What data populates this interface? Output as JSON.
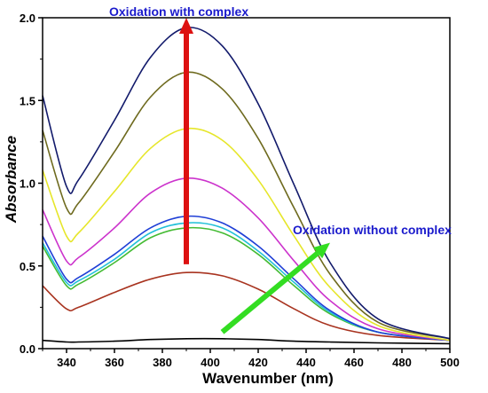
{
  "chart_data": {
    "type": "line",
    "title": "",
    "xlabel": "Wavenumber (nm)",
    "ylabel": "Absorbance",
    "xlim": [
      330,
      500
    ],
    "ylim": [
      0,
      2.0
    ],
    "x_ticks": [
      "340",
      "360",
      "380",
      "400",
      "420",
      "440",
      "460",
      "480",
      "500"
    ],
    "y_ticks": [
      "0.0",
      "0.5",
      "1.0",
      "1.5",
      "2.0"
    ],
    "grid": false,
    "x": [
      330,
      340,
      345,
      360,
      375,
      390,
      405,
      420,
      435,
      450,
      470,
      500
    ],
    "series": [
      {
        "color": "#000000",
        "values": [
          0.05,
          0.04,
          0.04,
          0.045,
          0.055,
          0.06,
          0.06,
          0.055,
          0.045,
          0.04,
          0.035,
          0.03
        ]
      },
      {
        "color": "#a8331f",
        "values": [
          0.38,
          0.24,
          0.25,
          0.34,
          0.42,
          0.46,
          0.44,
          0.36,
          0.24,
          0.14,
          0.08,
          0.05
        ]
      },
      {
        "color": "#44bb33",
        "values": [
          0.62,
          0.38,
          0.39,
          0.52,
          0.67,
          0.73,
          0.7,
          0.57,
          0.38,
          0.21,
          0.1,
          0.05
        ]
      },
      {
        "color": "#22c0d8",
        "values": [
          0.64,
          0.4,
          0.41,
          0.54,
          0.7,
          0.76,
          0.73,
          0.59,
          0.4,
          0.22,
          0.1,
          0.05
        ]
      },
      {
        "color": "#1f3fd6",
        "values": [
          0.68,
          0.42,
          0.43,
          0.57,
          0.73,
          0.8,
          0.76,
          0.62,
          0.42,
          0.23,
          0.1,
          0.05
        ]
      },
      {
        "color": "#cc33cc",
        "values": [
          0.84,
          0.53,
          0.55,
          0.73,
          0.94,
          1.03,
          0.97,
          0.79,
          0.53,
          0.29,
          0.12,
          0.05
        ]
      },
      {
        "color": "#e6e62a",
        "values": [
          1.08,
          0.68,
          0.7,
          0.95,
          1.21,
          1.33,
          1.26,
          1.02,
          0.68,
          0.37,
          0.14,
          0.05
        ]
      },
      {
        "color": "#6e6a1e",
        "values": [
          1.32,
          0.85,
          0.88,
          1.19,
          1.52,
          1.67,
          1.57,
          1.27,
          0.85,
          0.45,
          0.16,
          0.06
        ]
      },
      {
        "color": "#121a6b",
        "values": [
          1.53,
          0.98,
          1.02,
          1.38,
          1.76,
          1.94,
          1.83,
          1.48,
          0.99,
          0.52,
          0.18,
          0.06
        ]
      }
    ],
    "annotations": [
      {
        "text": "Oxidation with complex",
        "color": "#1a1acc"
      },
      {
        "text": "Oxidation without complex",
        "color": "#1a1acc"
      }
    ],
    "arrows": [
      {
        "color": "#dd1111",
        "from": [
          390,
          0.51
        ],
        "to": [
          390,
          2.0
        ]
      },
      {
        "color": "#33dd22",
        "from": [
          405,
          0.1
        ],
        "to": [
          450,
          0.64
        ]
      }
    ]
  }
}
